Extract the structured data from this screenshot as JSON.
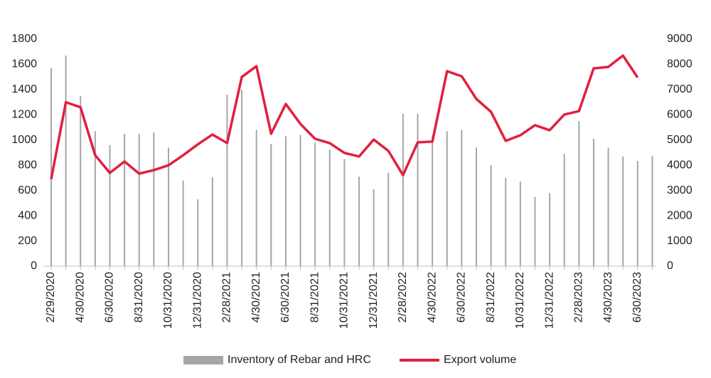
{
  "chart_data": {
    "type": "bar_line",
    "categories": [
      "2/29/2020",
      null,
      "4/30/2020",
      null,
      "6/30/2020",
      null,
      "8/31/2020",
      null,
      "10/31/2020",
      null,
      "12/31/2020",
      null,
      "2/28/2021",
      null,
      "4/30/2021",
      null,
      "6/30/2021",
      null,
      "8/31/2021",
      null,
      "10/31/2021",
      null,
      "12/31/2021",
      null,
      "2/28/2022",
      null,
      "4/30/2022",
      null,
      "6/30/2022",
      null,
      "8/31/2022",
      null,
      "10/31/2022",
      null,
      "12/31/2022",
      null,
      "2/28/2023",
      null,
      "4/30/2023",
      null,
      "6/30/2023",
      null
    ],
    "series": [
      {
        "name": "Inventory of Rebar and HRC",
        "color": "#a6a6a6",
        "type": "bar",
        "axis": "y",
        "values": [
          1570,
          1670,
          1350,
          1070,
          960,
          1050,
          1050,
          1060,
          940,
          680,
          530,
          705,
          1360,
          1400,
          1080,
          970,
          1030,
          1040,
          980,
          925,
          850,
          710,
          610,
          740,
          1210,
          1210,
          1040,
          1070,
          1080,
          940,
          800,
          700,
          670,
          550,
          580,
          890,
          1150,
          1010,
          940,
          870,
          835,
          875
        ]
      },
      {
        "name": "Export volume",
        "color": "#e0203f",
        "type": "line",
        "axis": "y2",
        "values": [
          3450,
          6500,
          6300,
          4400,
          3700,
          4150,
          3670,
          3810,
          4000,
          4400,
          4830,
          5220,
          4880,
          7500,
          7930,
          5250,
          6430,
          5640,
          5050,
          4880,
          4490,
          4350,
          5020,
          4570,
          3610,
          4910,
          4940,
          7730,
          7530,
          6630,
          6120,
          4970,
          5190,
          5590,
          5390,
          6010,
          6150,
          7840,
          7900,
          8350,
          7480,
          null
        ]
      }
    ],
    "ylim": [
      0,
      1800
    ],
    "yticks": [
      0,
      200,
      400,
      600,
      800,
      1000,
      1200,
      1400,
      1600,
      1800
    ],
    "y2lim": [
      0,
      9000
    ],
    "y2ticks": [
      0,
      1000,
      2000,
      3000,
      4000,
      5000,
      6000,
      7000,
      8000,
      9000
    ],
    "legend": "bottom"
  }
}
